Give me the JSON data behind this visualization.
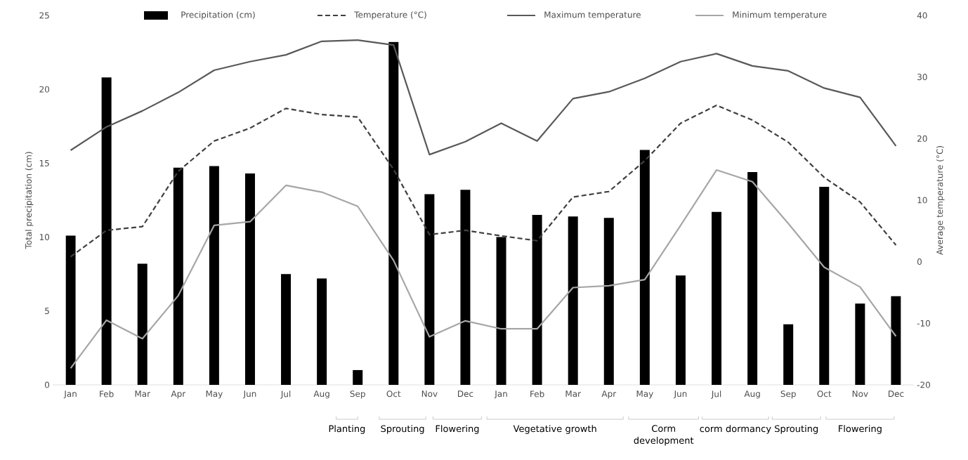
{
  "chart_data": {
    "type": "bar",
    "categories": [
      "Jan",
      "Feb",
      "Mar",
      "Apr",
      "May",
      "Jun",
      "Jul",
      "Aug",
      "Sep",
      "Oct",
      "Nov",
      "Dec",
      "Jan",
      "Feb",
      "Mar",
      "Apr",
      "May",
      "Jun",
      "Jul",
      "Aug",
      "Sep",
      "Oct",
      "Nov",
      "Dec"
    ],
    "ylabel": "Total precipitation (cm)",
    "y2label": "Average temperature (°C)",
    "ylim": [
      0,
      25
    ],
    "yticks": [
      0,
      5,
      10,
      15,
      20,
      25
    ],
    "y2lim": [
      -20,
      40
    ],
    "y2ticks": [
      -20,
      -10,
      0,
      10,
      20,
      30,
      40
    ],
    "legend": "top",
    "marker": "none",
    "grid": false,
    "series": [
      {
        "name": "Precipitation (cm)",
        "color": "#000000",
        "values": [
          10.1,
          20.8,
          8.2,
          14.7,
          14.8,
          14.3,
          7.5,
          7.2,
          1.0,
          23.2,
          12.9,
          13.2,
          10.0,
          11.5,
          11.4,
          11.3,
          15.9,
          7.4,
          11.7,
          14.4,
          4.1,
          13.4,
          5.5,
          6.0
        ]
      },
      {
        "name": "Temperature (°C)",
        "type": "line",
        "axis": "y2",
        "line_style": "dashed",
        "color": "#404040",
        "values": [
          0.8,
          5.1,
          5.7,
          14.7,
          19.6,
          21.7,
          24.9,
          23.9,
          23.5,
          15.0,
          4.4,
          5.1,
          4.2,
          3.4,
          10.5,
          11.4,
          16.4,
          22.5,
          25.4,
          23.0,
          19.4,
          13.7,
          9.7,
          2.7
        ]
      },
      {
        "name": "Maximum temperature",
        "type": "line",
        "axis": "y2",
        "line_style": "solid",
        "color": "#595959",
        "values": [
          18.1,
          21.9,
          24.5,
          27.5,
          31.1,
          32.5,
          33.6,
          35.8,
          36.0,
          35.2,
          17.4,
          19.5,
          22.5,
          19.6,
          26.5,
          27.6,
          29.8,
          32.5,
          33.8,
          31.8,
          31.0,
          28.2,
          26.7,
          18.8
        ]
      },
      {
        "name": "Minimum temperature",
        "type": "line",
        "axis": "y2",
        "line_style": "solid",
        "color": "#a6a6a6",
        "values": [
          -17.3,
          -9.5,
          -12.5,
          -5.5,
          5.9,
          6.5,
          12.4,
          11.3,
          9.0,
          0.2,
          -12.2,
          -9.6,
          -10.9,
          -10.9,
          -4.2,
          -3.9,
          -2.9,
          5.9,
          14.9,
          13.0,
          6.2,
          -0.9,
          -4.1,
          -12.1
        ]
      }
    ],
    "annotations": [
      "Planting",
      "Sprouting",
      "Flowering",
      "Vegetative growth",
      "Corm development",
      "corm dormancy",
      "Sprouting",
      "Flowering"
    ]
  }
}
